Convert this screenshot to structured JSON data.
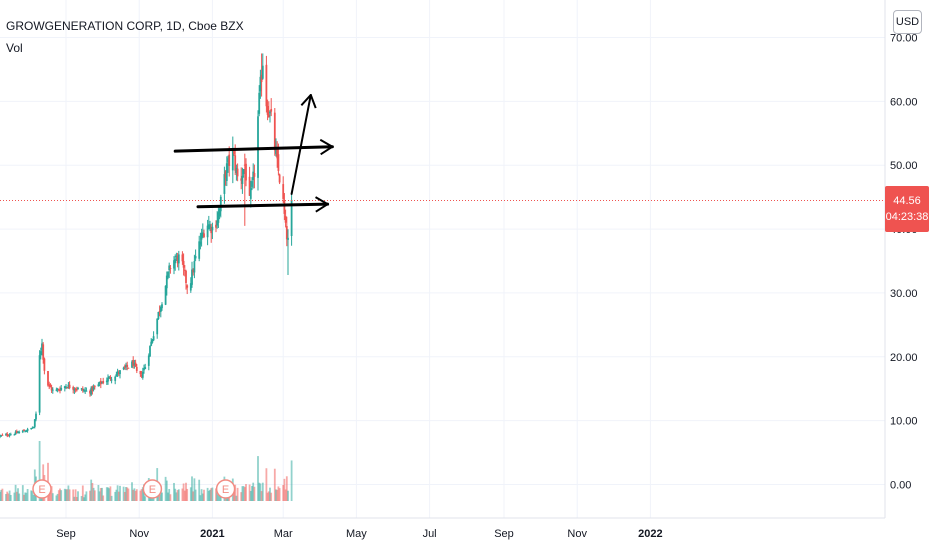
{
  "header": {
    "title": "GROWGENERATION CORP, 1D, Cboe BZX",
    "volume_label": "Vol",
    "currency_button": "USD"
  },
  "price_tag": {
    "price": "44.56",
    "countdown": "04:23:38",
    "color": "#ef5350"
  },
  "colors": {
    "up": "#26a69a",
    "down": "#ef5350",
    "grid": "#f0f3fa",
    "axis_text": "#131722",
    "drawing": "#000000",
    "earnings_badge": "#f28b82"
  },
  "chart_data": {
    "type": "candlestick",
    "title": "GROWGENERATION CORP, 1D, Cboe BZX",
    "y_axis": {
      "ticks": [
        "0.00",
        "10.00",
        "20.00",
        "30.00",
        "40.00",
        "50.00",
        "60.00",
        "70.00"
      ],
      "tick_values": [
        0,
        10,
        20,
        30,
        40,
        50,
        60,
        70
      ],
      "range": [
        -3.5,
        72
      ]
    },
    "x_axis": {
      "tick_labels": [
        "Sep",
        "Nov",
        "2021",
        "Mar",
        "May",
        "Jul",
        "Sep",
        "Nov",
        "2022"
      ],
      "tick_dates": [
        "2020-09-01",
        "2020-11-01",
        "2021-01-01",
        "2021-03-01",
        "2021-05-01",
        "2021-07-01",
        "2021-09-01",
        "2021-11-01",
        "2022-01-01"
      ],
      "range": [
        "2020-07-08",
        "2022-02-26"
      ]
    },
    "grid": true,
    "last_price": 44.56,
    "price_series_daily": [
      {
        "date": "2020-07-08",
        "close": 7.6
      },
      {
        "date": "2020-07-20",
        "close": 8.0
      },
      {
        "date": "2020-08-01",
        "close": 8.6
      },
      {
        "date": "2020-08-05",
        "close": 9.0
      },
      {
        "date": "2020-08-08",
        "close": 12.0
      },
      {
        "date": "2020-08-10",
        "close": 20.5
      },
      {
        "date": "2020-08-12",
        "close": 22.0
      },
      {
        "date": "2020-08-15",
        "close": 16.0
      },
      {
        "date": "2020-08-22",
        "close": 14.5
      },
      {
        "date": "2020-09-01",
        "close": 15.5
      },
      {
        "date": "2020-09-20",
        "close": 14.5
      },
      {
        "date": "2020-10-01",
        "close": 16.0
      },
      {
        "date": "2020-10-15",
        "close": 17.5
      },
      {
        "date": "2020-10-27",
        "close": 19.0
      },
      {
        "date": "2020-11-01",
        "close": 16.5
      },
      {
        "date": "2020-11-06",
        "close": 18.5
      },
      {
        "date": "2020-11-12",
        "close": 23.0
      },
      {
        "date": "2020-11-20",
        "close": 29.0
      },
      {
        "date": "2020-11-28",
        "close": 35.0
      },
      {
        "date": "2020-12-05",
        "close": 35.5
      },
      {
        "date": "2020-12-12",
        "close": 30.5
      },
      {
        "date": "2020-12-20",
        "close": 37.0
      },
      {
        "date": "2020-12-27",
        "close": 41.0
      },
      {
        "date": "2021-01-02",
        "close": 40.0
      },
      {
        "date": "2021-01-07",
        "close": 43.0
      },
      {
        "date": "2021-01-12",
        "close": 49.0
      },
      {
        "date": "2021-01-18",
        "close": 52.0
      },
      {
        "date": "2021-01-23",
        "close": 47.0
      },
      {
        "date": "2021-01-28",
        "close": 50.0
      },
      {
        "date": "2021-02-01",
        "close": 44.0
      },
      {
        "date": "2021-02-05",
        "close": 49.0
      },
      {
        "date": "2021-02-09",
        "close": 60.0
      },
      {
        "date": "2021-02-12",
        "close": 66.5
      },
      {
        "date": "2021-02-15",
        "close": 60.0
      },
      {
        "date": "2021-02-19",
        "close": 57.0
      },
      {
        "date": "2021-02-24",
        "close": 50.0
      },
      {
        "date": "2021-02-28",
        "close": 46.0
      },
      {
        "date": "2021-03-03",
        "close": 40.0
      },
      {
        "date": "2021-03-05",
        "close": 38.0
      },
      {
        "date": "2021-03-08",
        "close": 44.56
      }
    ],
    "drawings": [
      {
        "type": "ray_arrow",
        "start": {
          "date": "2020-12-01",
          "price": 52.2
        },
        "end": {
          "date": "2021-04-11",
          "price": 52.9
        }
      },
      {
        "type": "ray_arrow",
        "start": {
          "date": "2020-12-20",
          "price": 43.5
        },
        "end": {
          "date": "2021-04-07",
          "price": 43.9
        }
      },
      {
        "type": "arrow",
        "start": {
          "date": "2021-03-08",
          "price": 45.5
        },
        "end": {
          "date": "2021-03-24",
          "price": 61.0
        }
      }
    ],
    "earnings_markers": [
      {
        "date": "2020-08-12",
        "label": "E"
      },
      {
        "date": "2020-11-12",
        "label": "E"
      },
      {
        "date": "2021-01-12",
        "label": "E"
      }
    ]
  }
}
